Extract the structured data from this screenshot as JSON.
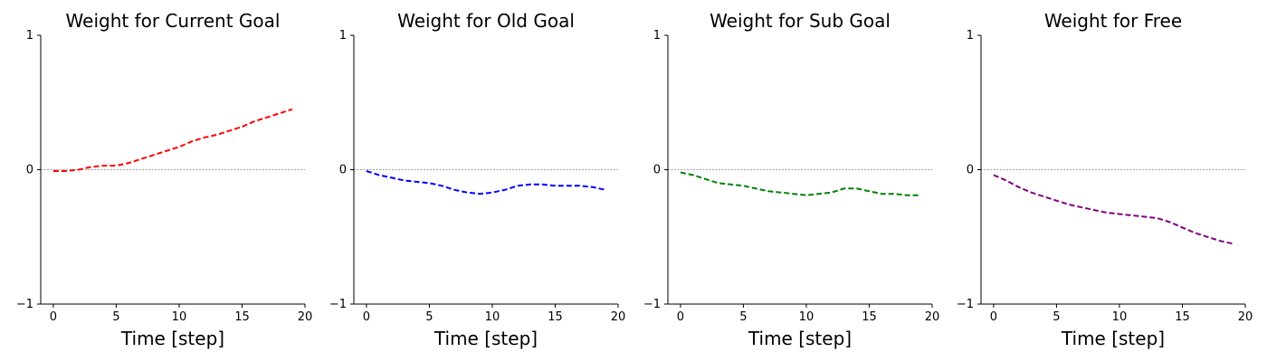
{
  "chart_data": [
    {
      "type": "line",
      "title": "Weight for Current Goal",
      "xlabel": "Time [step]",
      "ylabel": "",
      "xlim": [
        -1,
        20
      ],
      "ylim": [
        -1,
        1
      ],
      "xticks": [
        0,
        5,
        10,
        15,
        20
      ],
      "yticks": [
        -1,
        0,
        1
      ],
      "reference_line_y": 0,
      "series": [
        {
          "color": "#ff0000",
          "style": "dashed",
          "x": [
            0,
            1,
            2,
            3,
            4,
            5,
            6,
            7,
            8,
            9,
            10,
            11,
            12,
            13,
            14,
            15,
            16,
            17,
            18,
            19
          ],
          "y": [
            -0.01,
            -0.01,
            0.0,
            0.02,
            0.03,
            0.03,
            0.05,
            0.08,
            0.11,
            0.14,
            0.17,
            0.21,
            0.24,
            0.26,
            0.29,
            0.32,
            0.36,
            0.39,
            0.42,
            0.45
          ]
        }
      ]
    },
    {
      "type": "line",
      "title": "Weight for Old Goal",
      "xlabel": "Time [step]",
      "ylabel": "",
      "xlim": [
        -1,
        20
      ],
      "ylim": [
        -1,
        1
      ],
      "xticks": [
        0,
        5,
        10,
        15,
        20
      ],
      "yticks": [
        -1,
        0,
        1
      ],
      "reference_line_y": 0,
      "series": [
        {
          "color": "#0000ff",
          "style": "dashed",
          "x": [
            0,
            1,
            2,
            3,
            4,
            5,
            6,
            7,
            8,
            9,
            10,
            11,
            12,
            13,
            14,
            15,
            16,
            17,
            18,
            19
          ],
          "y": [
            -0.01,
            -0.04,
            -0.06,
            -0.08,
            -0.09,
            -0.1,
            -0.12,
            -0.15,
            -0.17,
            -0.18,
            -0.17,
            -0.15,
            -0.12,
            -0.11,
            -0.11,
            -0.12,
            -0.12,
            -0.12,
            -0.13,
            -0.15
          ]
        }
      ]
    },
    {
      "type": "line",
      "title": "Weight for Sub Goal",
      "xlabel": "Time [step]",
      "ylabel": "",
      "xlim": [
        -1,
        20
      ],
      "ylim": [
        -1,
        1
      ],
      "xticks": [
        0,
        5,
        10,
        15,
        20
      ],
      "yticks": [
        -1,
        0,
        1
      ],
      "reference_line_y": 0,
      "series": [
        {
          "color": "#008000",
          "style": "dashed",
          "x": [
            0,
            1,
            2,
            3,
            4,
            5,
            6,
            7,
            8,
            9,
            10,
            11,
            12,
            13,
            14,
            15,
            16,
            17,
            18,
            19
          ],
          "y": [
            -0.02,
            -0.04,
            -0.07,
            -0.1,
            -0.11,
            -0.12,
            -0.14,
            -0.16,
            -0.17,
            -0.18,
            -0.19,
            -0.18,
            -0.17,
            -0.14,
            -0.14,
            -0.16,
            -0.18,
            -0.18,
            -0.19,
            -0.19
          ]
        }
      ]
    },
    {
      "type": "line",
      "title": "Weight for Free",
      "xlabel": "Time [step]",
      "ylabel": "",
      "xlim": [
        -1,
        20
      ],
      "ylim": [
        -1,
        1
      ],
      "xticks": [
        0,
        5,
        10,
        15,
        20
      ],
      "yticks": [
        -1,
        0,
        1
      ],
      "reference_line_y": 0,
      "series": [
        {
          "color": "#800080",
          "style": "dashed",
          "x": [
            0,
            1,
            2,
            3,
            4,
            5,
            6,
            7,
            8,
            9,
            10,
            11,
            12,
            13,
            14,
            15,
            16,
            17,
            18,
            19
          ],
          "y": [
            -0.04,
            -0.08,
            -0.13,
            -0.17,
            -0.2,
            -0.23,
            -0.26,
            -0.28,
            -0.3,
            -0.32,
            -0.33,
            -0.34,
            -0.35,
            -0.36,
            -0.39,
            -0.43,
            -0.47,
            -0.5,
            -0.53,
            -0.55
          ]
        }
      ]
    }
  ]
}
